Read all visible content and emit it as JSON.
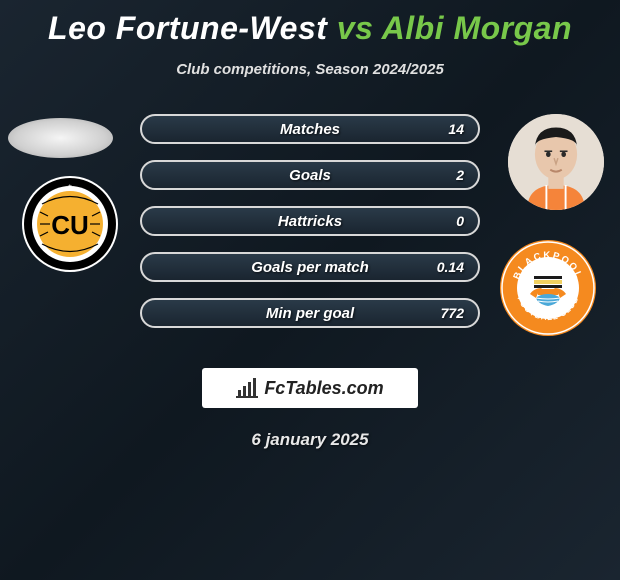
{
  "title": {
    "player1": "Leo Fortune-West",
    "vs": "vs",
    "player2": "Albi Morgan"
  },
  "subtitle": "Club competitions, Season 2024/2025",
  "stats": [
    {
      "label": "Matches",
      "left_pct": 0,
      "right_value": "14",
      "right_pct": 100
    },
    {
      "label": "Goals",
      "left_pct": 0,
      "right_value": "2",
      "right_pct": 100
    },
    {
      "label": "Hattricks",
      "left_pct": 0,
      "right_value": "0",
      "right_pct": 0
    },
    {
      "label": "Goals per match",
      "left_pct": 0,
      "right_value": "0.14",
      "right_pct": 100
    },
    {
      "label": "Min per goal",
      "left_pct": 0,
      "right_value": "772",
      "right_pct": 100
    }
  ],
  "brand": "FcTables.com",
  "date": "6 january 2025",
  "colors": {
    "accent_green": "#78c84a",
    "bar_border": "#d8d8d8",
    "bar_fill_top": "#8fd85f",
    "bar_fill_bottom": "#5fa530",
    "bg_dark": "#0f1820",
    "crest_cu_outer": "#f5b030",
    "crest_cu_text": "#000000",
    "crest_bp_outer": "#f58a1f",
    "crest_bp_text": "#ffffff"
  },
  "icons": {
    "player1_crest": "cambridge-united",
    "player2_crest": "blackpool",
    "brand_icon": "bar-chart-icon"
  }
}
